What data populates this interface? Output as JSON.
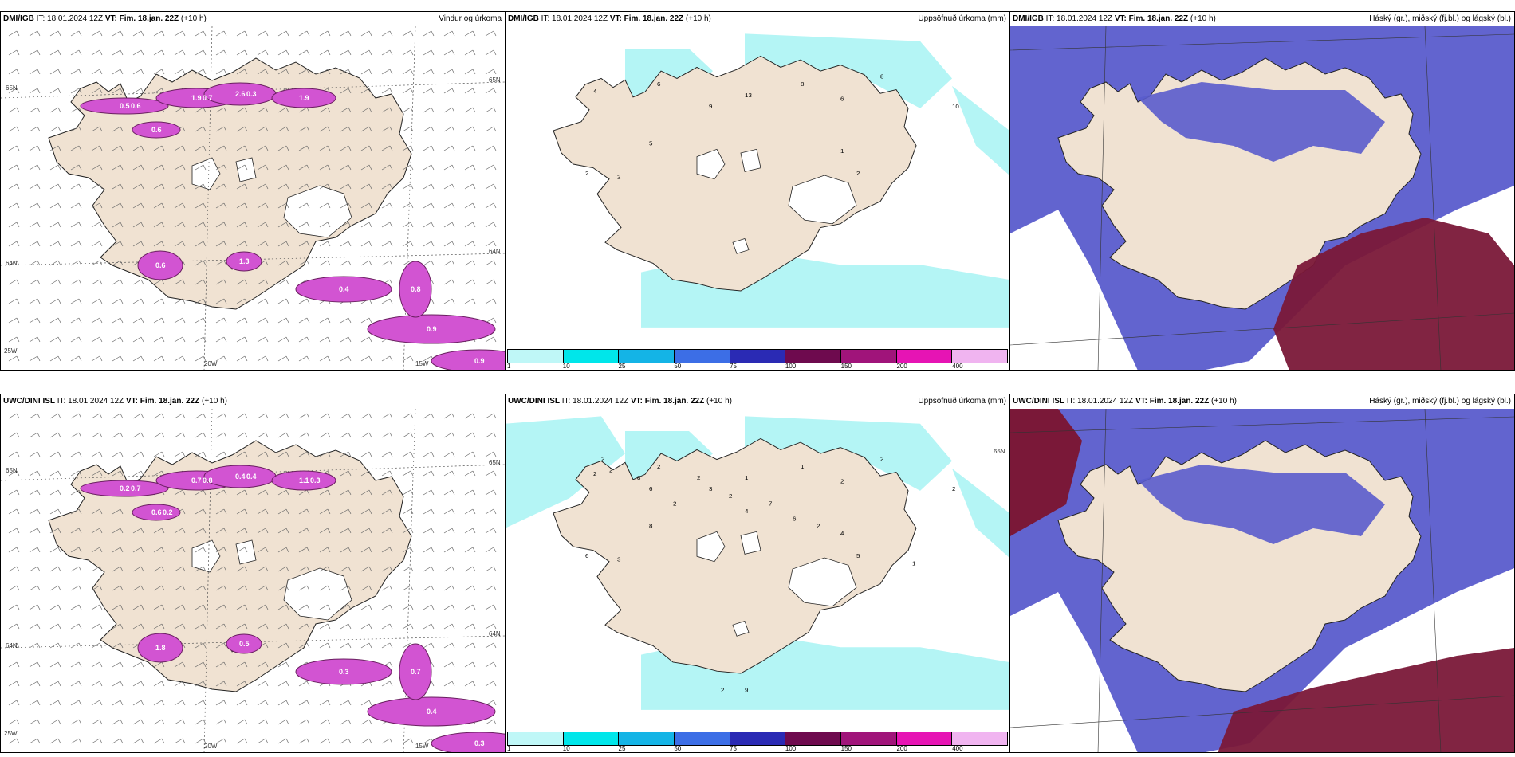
{
  "panels": [
    {
      "id": "p1",
      "source": "DMI/IGB",
      "it": "IT: 18.01.2024 12Z",
      "vt": "VT: Fim. 18.jan. 22Z",
      "lead": "(+10 h)",
      "product": "Vindur og úrkoma",
      "type": "wind",
      "labels": [
        "0.5",
        "1.9",
        "2.6",
        "1.9",
        "0.6",
        "0.6",
        "1.3",
        "0.4",
        "0.9",
        "0.9",
        "0.8",
        "0.6",
        "0.7",
        "0.3"
      ],
      "axis": [
        "65N",
        "65N",
        "64N",
        "64N",
        "20W",
        "15W",
        "25W"
      ]
    },
    {
      "id": "p2",
      "source": "DMI/IGB",
      "it": "IT: 18.01.2024 12Z",
      "vt": "VT: Fim. 18.jan. 22Z",
      "lead": "(+10 h)",
      "product": "Uppsöfnuð úrkoma (mm)",
      "type": "precip",
      "labels": [
        "4",
        "6",
        "9",
        "13",
        "8",
        "6",
        "8",
        "10",
        "5",
        "1",
        "2",
        "2",
        "2"
      ]
    },
    {
      "id": "p3",
      "source": "DMI/IGB",
      "it": "IT: 18.01.2024 12Z",
      "vt": "VT: Fim. 18.jan. 22Z",
      "lead": "(+10 h)",
      "product": "Háský (gr.), miðský (fj.bl.) og lágský (bl.)",
      "type": "cloud"
    },
    {
      "id": "p4",
      "source": "UWC/DINI ISL",
      "it": "IT: 18.01.2024 12Z",
      "vt": "VT: Fim. 18.jan. 22Z",
      "lead": "(+10 h)",
      "product": "",
      "type": "wind",
      "labels": [
        "0.2",
        "0.7",
        "0.4",
        "1.1",
        "0.6",
        "1.8",
        "0.5",
        "0.3",
        "0.4",
        "0.3",
        "0.7",
        "0.7",
        "0.8",
        "0.4",
        "0.3",
        "0.2"
      ],
      "axis": [
        "65N",
        "65N",
        "64N",
        "64N",
        "20W",
        "15W",
        "25W"
      ]
    },
    {
      "id": "p5",
      "source": "UWC/DINI ISL",
      "it": "IT: 18.01.2024 12Z",
      "vt": "VT: Fim. 18.jan. 22Z",
      "lead": "(+10 h)",
      "product": "Uppsöfnuð úrkoma (mm)",
      "type": "precip",
      "labels": [
        "2",
        "2",
        "3",
        "1",
        "1",
        "2",
        "2",
        "2",
        "8",
        "4",
        "5",
        "6",
        "3",
        "2",
        "2",
        "8",
        "6",
        "2",
        "2",
        "2",
        "4",
        "7",
        "6",
        "2",
        "9",
        "2",
        "1"
      ],
      "axis": [
        "65N"
      ]
    },
    {
      "id": "p6",
      "source": "UWC/DINI ISL",
      "it": "IT: 18.01.2024 12Z",
      "vt": "VT: Fim. 18.jan. 22Z",
      "lead": "(+10 h)",
      "product": "Háský (gr.), miðský (fj.bl.) og lágský (bl.)",
      "type": "cloud"
    }
  ],
  "colorbar": {
    "ticks": [
      "1",
      "10",
      "25",
      "50",
      "75",
      "100",
      "150",
      "200",
      "400"
    ],
    "colors": [
      "#bff7f7",
      "#00e6ea",
      "#14b4e6",
      "#3c6ee6",
      "#2a2ab4",
      "#6e0a4e",
      "#a0147a",
      "#e614b4",
      "#f0b4f0"
    ]
  },
  "palette": {
    "land": "#f0e2d2",
    "water": "#ffffff",
    "cloud_low": "#5a5ccc",
    "cloud_high": "#7a1838",
    "precip_light": "#b4f5f5",
    "precip_pink": "#d254d2"
  }
}
